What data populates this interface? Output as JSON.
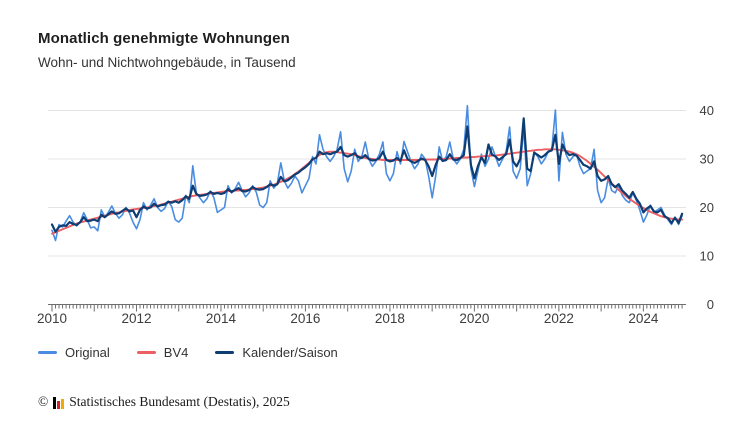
{
  "chart_data": {
    "type": "line",
    "title": "Monatlich genehmigte Wohnungen",
    "subtitle": "Wohn- und Nichtwohngebäude, in Tausend",
    "unit": "Tausend",
    "x_start_year": 2010,
    "x_months": 180,
    "x_tick_years": [
      2010,
      2012,
      2014,
      2016,
      2018,
      2020,
      2022,
      2024
    ],
    "y_ticks": [
      0,
      10,
      20,
      30,
      40
    ],
    "ylim": [
      0,
      42
    ],
    "grid": "horizontal",
    "legend_position": "bottom-left",
    "colors": {
      "grid": "#e4e4e4",
      "axis": "#6e6e6e",
      "tick_label": "#3d3d3d"
    },
    "series": [
      {
        "name": "Original",
        "color": "#4a8de0",
        "width": 1.6,
        "values": [
          15.3,
          13.2,
          16.5,
          16.0,
          17.2,
          18.3,
          17.0,
          16.2,
          17.0,
          18.9,
          17.5,
          15.8,
          16.0,
          15.2,
          19.5,
          18.0,
          19.0,
          20.3,
          18.8,
          17.8,
          18.5,
          20.0,
          18.9,
          17.0,
          15.6,
          17.5,
          21.0,
          19.5,
          20.5,
          21.8,
          20.0,
          19.2,
          19.8,
          21.3,
          20.2,
          17.5,
          17.0,
          17.8,
          22.5,
          21.0,
          28.6,
          23.0,
          22.0,
          21.0,
          21.8,
          23.4,
          22.0,
          19.0,
          19.5,
          20.0,
          24.5,
          23.0,
          23.8,
          25.2,
          23.5,
          22.2,
          23.0,
          24.5,
          23.2,
          20.5,
          20.0,
          21.0,
          25.5,
          24.0,
          25.0,
          29.2,
          25.5,
          24.0,
          25.0,
          26.5,
          25.5,
          23.0,
          24.5,
          26.0,
          30.5,
          29.0,
          35.0,
          32.0,
          30.5,
          29.5,
          30.5,
          32.0,
          35.6,
          28.0,
          25.3,
          27.5,
          32.0,
          29.5,
          30.5,
          33.5,
          30.0,
          28.5,
          29.5,
          31.0,
          33.5,
          27.0,
          25.5,
          27.0,
          31.5,
          29.0,
          33.6,
          31.5,
          29.5,
          28.0,
          29.0,
          31.0,
          30.0,
          26.5,
          22.0,
          26.5,
          32.5,
          29.5,
          30.5,
          33.5,
          30.0,
          29.0,
          30.0,
          32.0,
          41.0,
          28.0,
          24.3,
          27.5,
          31.0,
          28.5,
          30.0,
          32.5,
          30.5,
          28.5,
          30.0,
          31.5,
          36.6,
          27.5,
          26.0,
          28.0,
          36.5,
          24.5,
          27.0,
          31.5,
          30.5,
          29.0,
          30.0,
          31.5,
          32.0,
          40.1,
          25.5,
          35.5,
          31.0,
          29.5,
          30.5,
          31.0,
          28.5,
          27.0,
          27.5,
          28.0,
          32.0,
          23.5,
          21.0,
          22.0,
          26.0,
          23.5,
          23.0,
          24.5,
          22.5,
          21.5,
          21.0,
          23.0,
          21.5,
          19.5,
          17.0,
          18.5,
          20.5,
          19.0,
          19.5,
          20.0,
          18.5,
          17.5,
          16.5,
          18.0,
          16.5,
          18.3
        ]
      },
      {
        "name": "BV4",
        "color": "#ec5f63",
        "width": 1.9,
        "values": [
          14.6,
          14.9,
          15.2,
          15.5,
          15.8,
          16.1,
          16.4,
          16.7,
          16.9,
          17.1,
          17.3,
          17.5,
          17.7,
          17.9,
          18.1,
          18.3,
          18.5,
          18.7,
          18.9,
          19.0,
          19.2,
          19.3,
          19.5,
          19.6,
          19.7,
          19.8,
          19.9,
          20.0,
          20.1,
          20.3,
          20.4,
          20.6,
          20.8,
          21.0,
          21.2,
          21.4,
          21.6,
          21.8,
          22.0,
          22.2,
          22.4,
          22.5,
          22.6,
          22.7,
          22.8,
          22.9,
          23.0,
          23.1,
          23.2,
          23.3,
          23.4,
          23.4,
          23.5,
          23.5,
          23.6,
          23.6,
          23.7,
          23.8,
          23.9,
          24.0,
          24.1,
          24.3,
          24.5,
          24.7,
          25.0,
          25.3,
          25.6,
          26.0,
          26.4,
          26.9,
          27.4,
          28.0,
          28.6,
          29.2,
          29.8,
          30.3,
          30.8,
          31.2,
          31.4,
          31.5,
          31.5,
          31.4,
          31.3,
          31.2,
          31.1,
          31.0,
          30.8,
          30.6,
          30.4,
          30.2,
          30.1,
          30.0,
          29.9,
          29.9,
          29.8,
          29.8,
          29.8,
          29.8,
          29.8,
          29.8,
          29.8,
          29.8,
          29.8,
          29.8,
          29.8,
          29.9,
          29.9,
          29.9,
          29.9,
          29.9,
          30.0,
          30.0,
          30.0,
          30.1,
          30.1,
          30.2,
          30.2,
          30.3,
          30.3,
          30.4,
          30.4,
          30.5,
          30.5,
          30.6,
          30.6,
          30.7,
          30.7,
          30.8,
          30.9,
          31.0,
          31.1,
          31.2,
          31.3,
          31.4,
          31.5,
          31.6,
          31.7,
          31.8,
          31.9,
          31.9,
          32.0,
          32.0,
          32.0,
          32.0,
          31.9,
          31.8,
          31.7,
          31.5,
          31.3,
          31.0,
          30.6,
          30.1,
          29.6,
          29.0,
          28.4,
          27.8,
          27.1,
          26.4,
          25.7,
          25.0,
          24.3,
          23.6,
          23.0,
          22.4,
          21.8,
          21.3,
          20.8,
          20.3,
          19.9,
          19.5,
          19.1,
          18.8,
          18.5,
          18.2,
          18.0,
          17.8,
          17.7,
          17.6,
          17.5,
          17.5
        ]
      },
      {
        "name": "Kalender/Saison",
        "color": "#0e3d73",
        "width": 2.2,
        "values": [
          16.5,
          15.0,
          16.0,
          16.3,
          16.2,
          17.0,
          16.6,
          16.4,
          17.0,
          18.0,
          17.2,
          17.3,
          17.5,
          17.2,
          18.5,
          18.0,
          18.6,
          19.2,
          18.7,
          18.8,
          19.3,
          19.8,
          19.2,
          19.4,
          18.0,
          19.5,
          20.2,
          19.8,
          20.0,
          20.8,
          20.2,
          20.5,
          20.6,
          21.2,
          21.0,
          21.3,
          21.0,
          21.5,
          22.3,
          21.8,
          24.5,
          22.8,
          22.4,
          22.5,
          22.7,
          23.2,
          22.8,
          23.0,
          22.8,
          23.0,
          23.8,
          23.2,
          23.6,
          24.0,
          23.4,
          23.3,
          23.6,
          24.2,
          23.8,
          23.7,
          23.8,
          24.2,
          24.8,
          24.5,
          24.8,
          26.3,
          25.4,
          25.6,
          26.2,
          26.8,
          27.2,
          27.8,
          28.3,
          29.0,
          30.0,
          30.2,
          31.5,
          31.0,
          31.2,
          31.0,
          31.3,
          31.5,
          32.5,
          30.8,
          30.5,
          30.8,
          31.2,
          30.4,
          30.2,
          30.8,
          30.0,
          29.7,
          29.8,
          30.2,
          31.5,
          29.8,
          29.5,
          29.7,
          30.2,
          29.6,
          31.8,
          30.0,
          29.5,
          29.2,
          29.6,
          30.1,
          29.8,
          28.5,
          26.5,
          28.8,
          30.5,
          29.6,
          29.8,
          31.0,
          29.9,
          29.8,
          30.2,
          30.8,
          36.7,
          28.8,
          26.0,
          28.5,
          30.3,
          29.2,
          33.0,
          30.9,
          30.5,
          29.8,
          30.4,
          31.0,
          34.0,
          29.5,
          28.5,
          30.0,
          38.4,
          28.0,
          27.5,
          31.3,
          30.8,
          30.3,
          30.8,
          31.5,
          31.8,
          35.0,
          29.0,
          33.0,
          31.5,
          30.8,
          31.0,
          30.7,
          29.8,
          28.8,
          28.5,
          28.0,
          29.5,
          26.5,
          25.5,
          25.8,
          26.5,
          24.8,
          24.2,
          24.8,
          23.5,
          22.8,
          22.0,
          23.2,
          21.8,
          20.8,
          19.0,
          19.8,
          20.3,
          19.2,
          19.0,
          19.5,
          18.2,
          17.8,
          16.8,
          17.9,
          16.8,
          18.7
        ]
      }
    ]
  },
  "legend": {
    "items": [
      {
        "label": "Original",
        "color": "#4a8de0"
      },
      {
        "label": "BV4",
        "color": "#ec5f63"
      },
      {
        "label": "Kalender/Saison",
        "color": "#0e3d73"
      }
    ]
  },
  "footer": {
    "copyright": "©",
    "text": "Statistisches Bundesamt (Destatis), 2025",
    "logo_bar_colors": [
      "#000000",
      "#d2232a",
      "#f0ab00"
    ],
    "logo_bar_heights": [
      12,
      8,
      10
    ]
  }
}
